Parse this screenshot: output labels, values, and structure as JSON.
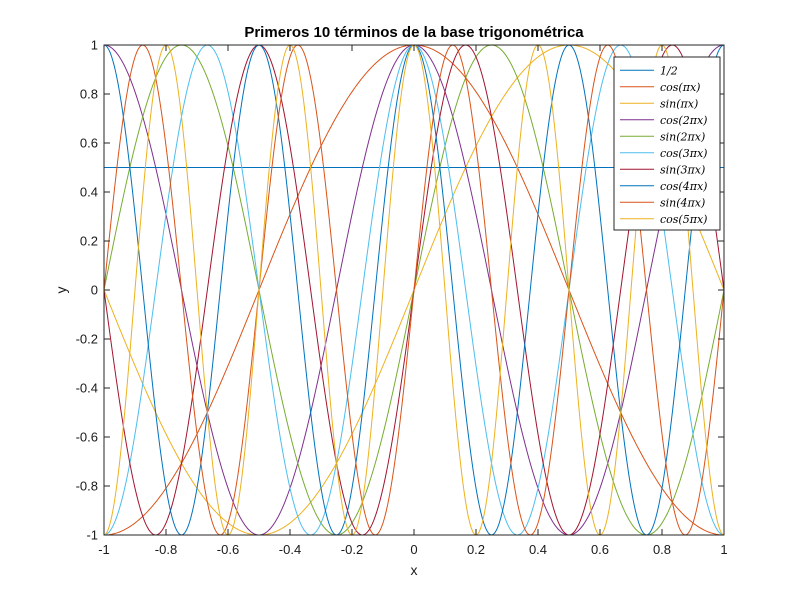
{
  "chart_data": {
    "type": "line",
    "title": "Primeros 10 términos de la base trigonométrica",
    "xlabel": "x",
    "ylabel": "y",
    "xlim": [
      -1,
      1
    ],
    "ylim": [
      -1,
      1
    ],
    "xticks": [
      "-1",
      "-0.8",
      "-0.6",
      "-0.4",
      "-0.2",
      "0",
      "0.2",
      "0.4",
      "0.6",
      "0.8",
      "1"
    ],
    "yticks": [
      "-1",
      "-0.8",
      "-0.6",
      "-0.4",
      "-0.2",
      "0",
      "0.2",
      "0.4",
      "0.6",
      "0.8",
      "1"
    ],
    "grid": false,
    "legend_position": "top-right",
    "x_samples": 401,
    "series": [
      {
        "name": "1/2",
        "kind": "const",
        "k": 0,
        "color": "#0072BD"
      },
      {
        "name": "cos(πx)",
        "kind": "cos",
        "k": 1,
        "color": "#D95319"
      },
      {
        "name": "sin(πx)",
        "kind": "sin",
        "k": 1,
        "color": "#EDB120"
      },
      {
        "name": "cos(2πx)",
        "kind": "cos",
        "k": 2,
        "color": "#7E2F8E"
      },
      {
        "name": "sin(2πx)",
        "kind": "sin",
        "k": 2,
        "color": "#77AC30"
      },
      {
        "name": "cos(3πx)",
        "kind": "cos",
        "k": 3,
        "color": "#4DBEEE"
      },
      {
        "name": "sin(3πx)",
        "kind": "sin",
        "k": 3,
        "color": "#A2142F"
      },
      {
        "name": "cos(4πx)",
        "kind": "cos",
        "k": 4,
        "color": "#0072BD"
      },
      {
        "name": "sin(4πx)",
        "kind": "sin",
        "k": 4,
        "color": "#D95319"
      },
      {
        "name": "cos(5πx)",
        "kind": "cos",
        "k": 5,
        "color": "#EDB120"
      }
    ]
  }
}
